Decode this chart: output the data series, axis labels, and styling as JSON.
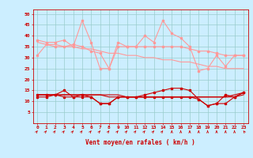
{
  "x": [
    0,
    1,
    2,
    3,
    4,
    5,
    6,
    7,
    8,
    9,
    10,
    11,
    12,
    13,
    14,
    15,
    16,
    17,
    18,
    19,
    20,
    21,
    22,
    23
  ],
  "rafales": [
    38,
    37,
    37,
    38,
    35,
    47,
    37,
    25,
    25,
    37,
    35,
    35,
    40,
    37,
    47,
    41,
    39,
    35,
    24,
    25,
    31,
    26,
    31,
    31
  ],
  "vent_moyen_light": [
    31,
    36,
    35,
    35,
    36,
    35,
    33,
    32,
    25,
    35,
    35,
    35,
    35,
    35,
    35,
    35,
    35,
    34,
    33,
    33,
    32,
    31,
    31,
    31
  ],
  "trend_rafales": [
    37,
    36,
    36,
    35,
    35,
    34,
    34,
    33,
    32,
    32,
    31,
    31,
    30,
    30,
    29,
    29,
    28,
    28,
    27,
    26,
    26,
    25,
    25,
    25
  ],
  "vent_moyen_dark": [
    13,
    13,
    13,
    15,
    12,
    13,
    12,
    9,
    9,
    12,
    12,
    12,
    13,
    14,
    15,
    16,
    16,
    15,
    11,
    8,
    9,
    13,
    12,
    14
  ],
  "vent_min": [
    12,
    12,
    13,
    12,
    12,
    12,
    12,
    9,
    9,
    12,
    12,
    12,
    12,
    12,
    12,
    12,
    12,
    12,
    11,
    8,
    9,
    9,
    12,
    14
  ],
  "trend_vent": [
    13,
    13,
    13,
    13,
    13,
    13,
    13,
    13,
    12,
    12,
    12,
    12,
    12,
    12,
    12,
    12,
    12,
    12,
    12,
    12,
    12,
    12,
    12,
    13
  ],
  "trend_vent2": [
    13,
    13,
    13,
    13,
    13,
    13,
    13,
    13,
    13,
    13,
    12,
    12,
    12,
    12,
    12,
    12,
    12,
    12,
    12,
    12,
    12,
    12,
    13,
    14
  ],
  "background_color": "#cceeff",
  "grid_color": "#99cccc",
  "light_red": "#ff9999",
  "dark_red": "#cc0000",
  "xlabel": "Vent moyen/en rafales ( km/h )",
  "ylim": [
    0,
    52
  ],
  "yticks": [
    5,
    10,
    15,
    20,
    25,
    30,
    35,
    40,
    45,
    50
  ],
  "arrow_angles": [
    45,
    45,
    45,
    45,
    45,
    45,
    45,
    45,
    45,
    45,
    45,
    45,
    45,
    45,
    45,
    0,
    0,
    0,
    0,
    0,
    0,
    0,
    0,
    -45
  ]
}
